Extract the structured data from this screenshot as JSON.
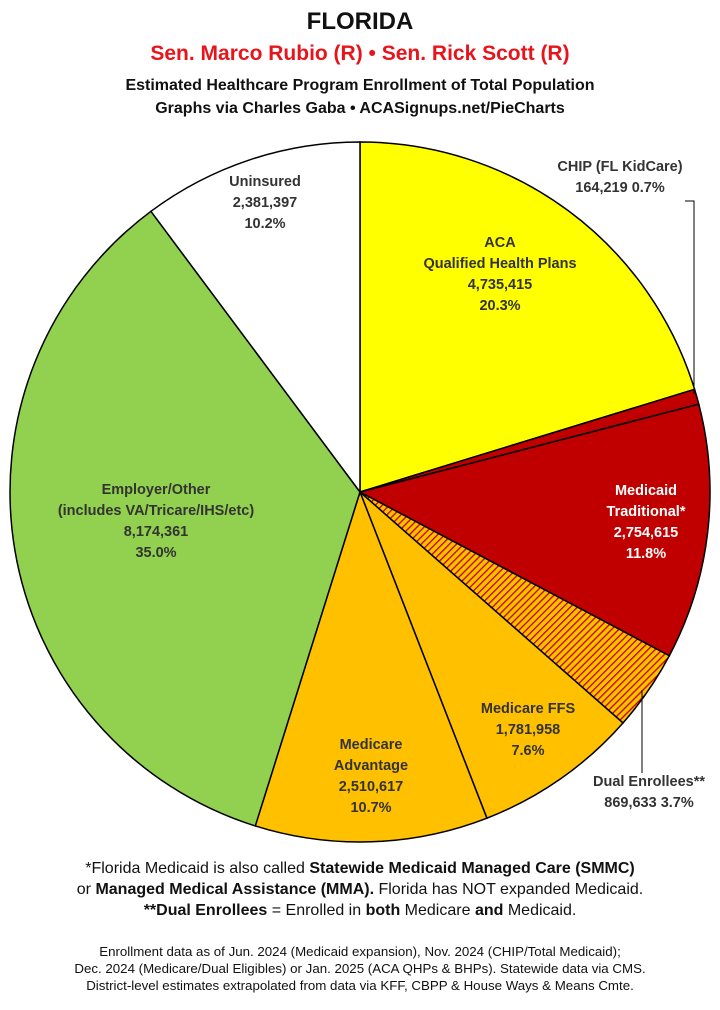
{
  "header": {
    "title": "FLORIDA",
    "senators": "Sen. Marco Rubio (R) • Sen. Rick Scott (R)",
    "subtitle": "Estimated Healthcare Program Enrollment of Total Population",
    "credit": "Graphs via Charles Gaba   •   ACASignups.net/PieCharts"
  },
  "chart_data": {
    "type": "pie",
    "title": "FLORIDA",
    "start_angle_deg": 0,
    "direction": "clockwise",
    "slices": [
      {
        "label": "ACA Qualified Health Plans",
        "lines": [
          "ACA",
          "Qualified Health Plans"
        ],
        "value": 4735415,
        "value_text": "4,735,415",
        "percent": "20.3%",
        "color": "#ffff00",
        "label_color": "#333333",
        "pattern": false
      },
      {
        "label": "CHIP (FL KidCare)",
        "lines": [
          "CHIP (FL KidCare)"
        ],
        "value": 164219,
        "value_text": "164,219",
        "percent": "0.7%",
        "color": "#c00000",
        "label_color": "#333333",
        "pattern": false
      },
      {
        "label": "Medicaid Traditional*",
        "lines": [
          "Medicaid",
          "Traditional*"
        ],
        "value": 2754615,
        "value_text": "2,754,615",
        "percent": "11.8%",
        "color": "#c00000",
        "label_color": "#ffffff",
        "pattern": false
      },
      {
        "label": "Dual Enrollees**",
        "lines": [
          "Dual Enrollees**"
        ],
        "value": 869633,
        "value_text": "869,633",
        "percent": "3.7%",
        "color": "#ffc000",
        "label_color": "#333333",
        "pattern": true
      },
      {
        "label": "Medicare FFS",
        "lines": [
          "Medicare FFS"
        ],
        "value": 1781958,
        "value_text": "1,781,958",
        "percent": "7.6%",
        "color": "#ffc000",
        "label_color": "#333333",
        "pattern": false
      },
      {
        "label": "Medicare Advantage",
        "lines": [
          "Medicare",
          "Advantage"
        ],
        "value": 2510617,
        "value_text": "2,510,617",
        "percent": "10.7%",
        "color": "#ffc000",
        "label_color": "#333333",
        "pattern": false
      },
      {
        "label": "Employer/Other (includes VA/Tricare/IHS/etc)",
        "lines": [
          "Employer/Other",
          "(includes VA/Tricare/IHS/etc)"
        ],
        "value": 8174361,
        "value_text": "8,174,361",
        "percent": "35.0%",
        "color": "#92d050",
        "label_color": "#333333",
        "pattern": false
      },
      {
        "label": "Uninsured",
        "lines": [
          "Uninsured"
        ],
        "value": 2381397,
        "value_text": "2,381,397",
        "percent": "10.2%",
        "color": "#ffffff",
        "label_color": "#333333",
        "pattern": false
      }
    ]
  },
  "footnotes": {
    "line1": [
      "*Florida Medicaid is also called ",
      "Statewide Medicaid Managed Care (SMMC)"
    ],
    "line2": [
      "or ",
      "Managed Medical Assistance (MMA).",
      " Florida has NOT expanded Medicaid."
    ],
    "line3": [
      "**Dual Enrollees",
      " = Enrolled in ",
      "both",
      " Medicare ",
      "and",
      " Medicaid."
    ]
  },
  "sources": {
    "line1": "Enrollment data as of Jun. 2024 (Medicaid expansion), Nov. 2024 (CHIP/Total Medicaid);",
    "line2": "Dec. 2024 (Medicare/Dual Eligibles) or Jan. 2025 (ACA QHPs & BHPs). Statewide data via CMS.",
    "line3": "District-level estimates extrapolated from data via KFF, CBPP & House Ways & Means Cmte."
  }
}
